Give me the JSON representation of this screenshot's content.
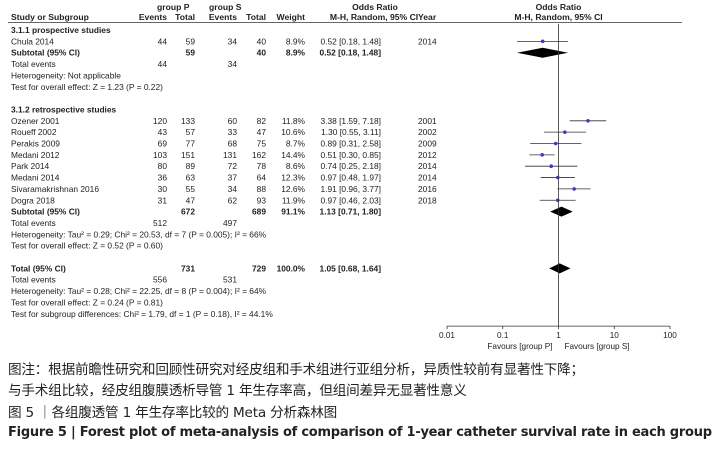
{
  "chart_data": {
    "type": "forest",
    "header": {
      "study_col": "Study or Subgroup",
      "group1": "group P",
      "group2": "group S",
      "events": "Events",
      "total": "Total",
      "weight": "Weight",
      "or_title": "Odds Ratio",
      "or_method": "M-H, Random, 95% CI",
      "year": "Year",
      "plot_title": "Odds Ratio",
      "plot_method": "M-H, Random, 95% CI"
    },
    "rows": [
      {
        "kind": "group",
        "label": "3.1.1 prospective studies"
      },
      {
        "kind": "study",
        "label": "Chula 2014",
        "e1": "44",
        "n1": "59",
        "e2": "34",
        "n2": "40",
        "weight": "8.9%",
        "ci": "0.52 [0.18, 1.48]",
        "year": "2014",
        "or": 0.52,
        "lo": 0.18,
        "hi": 1.48
      },
      {
        "kind": "subtotal",
        "label": "Subtotal (95% CI)",
        "n1": "59",
        "n2": "40",
        "weight": "8.9%",
        "ci": "0.52 [0.18, 1.48]",
        "or": 0.52,
        "lo": 0.18,
        "hi": 1.48
      },
      {
        "kind": "note",
        "label": "Total events",
        "e1": "44",
        "e2": "34"
      },
      {
        "kind": "note",
        "label": "Heterogeneity: Not applicable"
      },
      {
        "kind": "note",
        "label": "Test for overall effect: Z = 1.23 (P = 0.22)"
      },
      {
        "kind": "blank"
      },
      {
        "kind": "group",
        "label": "3.1.2 retrospective studies"
      },
      {
        "kind": "study",
        "label": "Ozener 2001",
        "e1": "120",
        "n1": "133",
        "e2": "60",
        "n2": "82",
        "weight": "11.8%",
        "ci": "3.38 [1.59, 7.18]",
        "year": "2001",
        "or": 3.38,
        "lo": 1.59,
        "hi": 7.18
      },
      {
        "kind": "study",
        "label": "Roueff 2002",
        "e1": "43",
        "n1": "57",
        "e2": "33",
        "n2": "47",
        "weight": "10.6%",
        "ci": "1.30 [0.55, 3.11]",
        "year": "2002",
        "or": 1.3,
        "lo": 0.55,
        "hi": 3.11
      },
      {
        "kind": "study",
        "label": "Perakis 2009",
        "e1": "69",
        "n1": "77",
        "e2": "68",
        "n2": "75",
        "weight": "8.7%",
        "ci": "0.89 [0.31, 2.58]",
        "year": "2009",
        "or": 0.89,
        "lo": 0.31,
        "hi": 2.58
      },
      {
        "kind": "study",
        "label": "Medani 2012",
        "e1": "103",
        "n1": "151",
        "e2": "131",
        "n2": "162",
        "weight": "14.4%",
        "ci": "0.51 [0.30, 0.85]",
        "year": "2012",
        "or": 0.51,
        "lo": 0.3,
        "hi": 0.85
      },
      {
        "kind": "study",
        "label": "Park 2014",
        "e1": "80",
        "n1": "89",
        "e2": "72",
        "n2": "78",
        "weight": "8.6%",
        "ci": "0.74 [0.25, 2.18]",
        "year": "2014",
        "or": 0.74,
        "lo": 0.25,
        "hi": 2.18
      },
      {
        "kind": "study",
        "label": "Medani 2014",
        "e1": "36",
        "n1": "63",
        "e2": "37",
        "n2": "64",
        "weight": "12.3%",
        "ci": "0.97 [0.48, 1.97]",
        "year": "2014",
        "or": 0.97,
        "lo": 0.48,
        "hi": 1.97
      },
      {
        "kind": "study",
        "label": "Sivaramakrishnan 2016",
        "e1": "30",
        "n1": "55",
        "e2": "34",
        "n2": "88",
        "weight": "12.6%",
        "ci": "1.91 [0.96, 3.77]",
        "year": "2016",
        "or": 1.91,
        "lo": 0.96,
        "hi": 3.77
      },
      {
        "kind": "study",
        "label": "Dogra 2018",
        "e1": "31",
        "n1": "47",
        "e2": "62",
        "n2": "93",
        "weight": "11.9%",
        "ci": "0.97 [0.46, 2.03]",
        "year": "2018",
        "or": 0.97,
        "lo": 0.46,
        "hi": 2.03
      },
      {
        "kind": "subtotal",
        "label": "Subtotal (95% CI)",
        "n1": "672",
        "n2": "689",
        "weight": "91.1%",
        "ci": "1.13 [0.71, 1.80]",
        "or": 1.13,
        "lo": 0.71,
        "hi": 1.8
      },
      {
        "kind": "note",
        "label": "Total events",
        "e1": "512",
        "e2": "497"
      },
      {
        "kind": "note",
        "label": "Heterogeneity: Tau² = 0.29; Chi² = 20.53, df = 7 (P = 0.005); I² = 66%"
      },
      {
        "kind": "note",
        "label": "Test for overall effect: Z = 0.52 (P = 0.60)"
      },
      {
        "kind": "blank"
      },
      {
        "kind": "total",
        "label": "Total (95% CI)",
        "n1": "731",
        "n2": "729",
        "weight": "100.0%",
        "ci": "1.05 [0.68, 1.64]",
        "or": 1.05,
        "lo": 0.68,
        "hi": 1.64
      },
      {
        "kind": "note",
        "label": "Total events",
        "e1": "556",
        "e2": "531"
      },
      {
        "kind": "note",
        "label": "Heterogeneity: Tau² = 0.28; Chi² = 22.25, df = 8 (P = 0.004); I² = 64%"
      },
      {
        "kind": "note",
        "label": "Test for overall effect: Z = 0.24 (P = 0.81)"
      },
      {
        "kind": "note",
        "label": "Test for subgroup differences: Chi² = 1.79, df = 1 (P = 0.18), I² = 44.1%"
      }
    ],
    "x_axis": {
      "scale": "log",
      "ticks": [
        0.01,
        0.1,
        1,
        10,
        100
      ],
      "tick_labels": [
        "0.01",
        "0.1",
        "1",
        "10",
        "100"
      ],
      "left_label": "Favours [group P]",
      "right_label": "Favours [group S]"
    },
    "colors": {
      "study_point": "#3b3bd4",
      "text": "#222222",
      "lines": "#333333"
    }
  },
  "caption": {
    "cn_line1": "图注：根据前瞻性研究和回顾性研究对经皮组和手术组进行亚组分析，异质性较前有显著性下降；",
    "cn_line2": "与手术组比较，经皮组腹膜透析导管 1 年生存率高，但组间差异无显著性意义",
    "cn_title": "图 5 ｜各组腹透管 1 年生存率比较的 Meta 分析森林图",
    "en_title": "Figure 5  |  Forest plot of meta-analysis of comparison of 1-year catheter survival rate in each group"
  }
}
